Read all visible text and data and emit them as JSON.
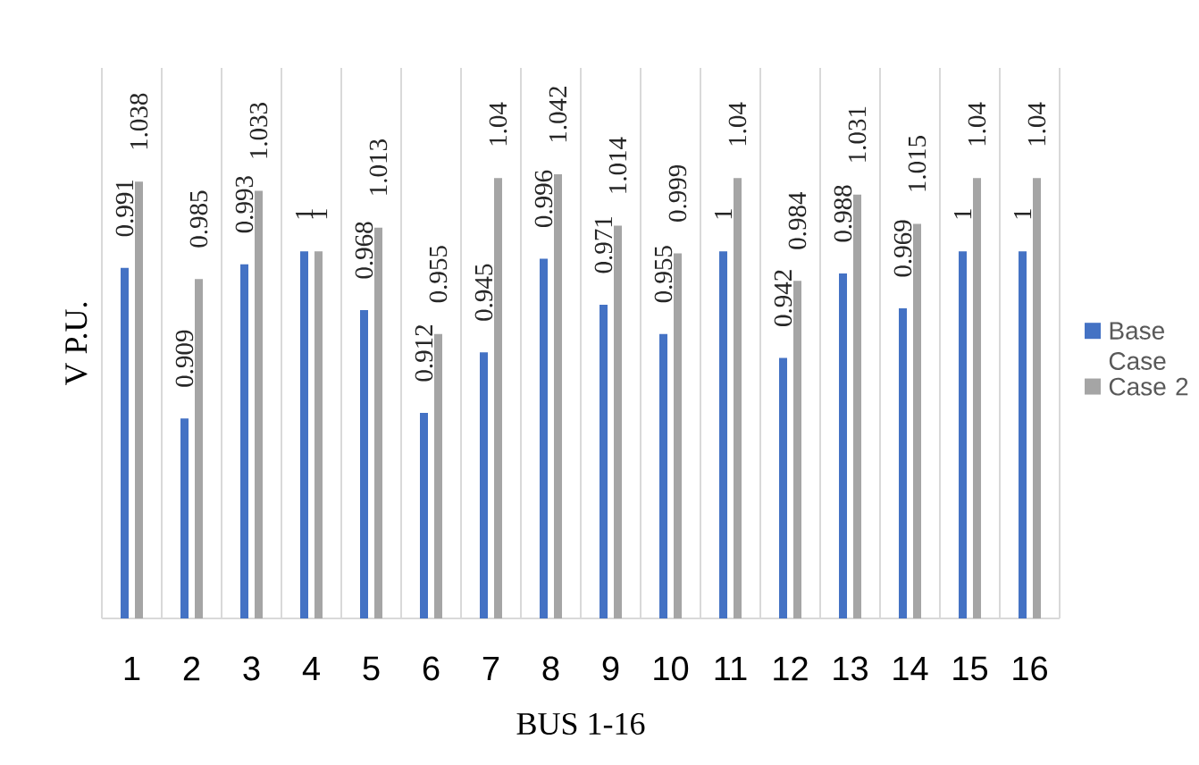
{
  "chart_data": {
    "type": "bar",
    "xlabel": "BUS 1-16",
    "ylabel": "V P.U.",
    "categories": [
      "1",
      "2",
      "3",
      "4",
      "5",
      "6",
      "7",
      "8",
      "9",
      "10",
      "11",
      "12",
      "13",
      "14",
      "15",
      "16"
    ],
    "series": [
      {
        "name": "Base Case",
        "color": "#4472c4",
        "values": [
          0.991,
          0.909,
          0.993,
          1,
          0.968,
          0.912,
          0.945,
          0.996,
          0.971,
          0.955,
          1,
          0.942,
          0.988,
          0.969,
          1,
          1
        ]
      },
      {
        "name": "Case 2",
        "color": "#a5a5a5",
        "values": [
          1.038,
          0.985,
          1.033,
          1,
          1.013,
          0.955,
          1.04,
          1.042,
          1.014,
          0.999,
          1.04,
          0.984,
          1.031,
          1.015,
          1.04,
          1.04
        ]
      }
    ],
    "ylim": [
      0.8,
      1.1
    ],
    "grid": "x",
    "legend": "right",
    "data_labels": true,
    "tick_labels": "x"
  }
}
